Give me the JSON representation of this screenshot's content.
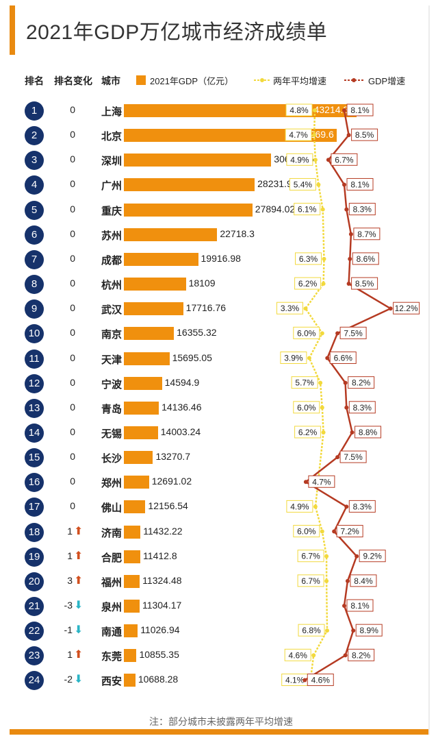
{
  "title": "2021年GDP万亿城市经济成绩单",
  "headers": {
    "rank": "排名",
    "rank_change": "排名变化",
    "city": "城市",
    "gdp": "2021年GDP（亿元）",
    "avg_growth": "两年平均增速",
    "gdp_growth": "GDP增速"
  },
  "colors": {
    "bar": "#f0900e",
    "rank_circle": "#16326b",
    "avg_line": "#f2d93c",
    "gdp_line": "#b53a22",
    "up_arrow": "#d2501f",
    "down_arrow": "#2bb5c6",
    "accent": "#e98a10"
  },
  "note": "注：部分城市未披露两年平均增速",
  "chart_data": {
    "type": "bar",
    "title": "2021年GDP万亿城市经济成绩单",
    "rows": [
      {
        "rank": "1",
        "change": "0",
        "dir": "",
        "city": "上海",
        "gdp": "43214.85",
        "avg": "4.8%",
        "growth": "8.1%"
      },
      {
        "rank": "2",
        "change": "0",
        "dir": "",
        "city": "北京",
        "gdp": "40269.6",
        "avg": "4.7%",
        "growth": "8.5%"
      },
      {
        "rank": "3",
        "change": "0",
        "dir": "",
        "city": "深圳",
        "gdp": "30664.85",
        "avg": "4.9%",
        "growth": "6.7%"
      },
      {
        "rank": "4",
        "change": "0",
        "dir": "",
        "city": "广州",
        "gdp": "28231.97",
        "avg": "5.4%",
        "growth": "8.1%"
      },
      {
        "rank": "5",
        "change": "0",
        "dir": "",
        "city": "重庆",
        "gdp": "27894.02",
        "avg": "6.1%",
        "growth": "8.3%"
      },
      {
        "rank": "6",
        "change": "0",
        "dir": "",
        "city": "苏州",
        "gdp": "22718.3",
        "avg": "",
        "growth": "8.7%"
      },
      {
        "rank": "7",
        "change": "0",
        "dir": "",
        "city": "成都",
        "gdp": "19916.98",
        "avg": "6.3%",
        "growth": "8.6%"
      },
      {
        "rank": "8",
        "change": "0",
        "dir": "",
        "city": "杭州",
        "gdp": "18109",
        "avg": "6.2%",
        "growth": "8.5%"
      },
      {
        "rank": "9",
        "change": "0",
        "dir": "",
        "city": "武汉",
        "gdp": "17716.76",
        "avg": "3.3%",
        "growth": "12.2%"
      },
      {
        "rank": "10",
        "change": "0",
        "dir": "",
        "city": "南京",
        "gdp": "16355.32",
        "avg": "6.0%",
        "growth": "7.5%"
      },
      {
        "rank": "11",
        "change": "0",
        "dir": "",
        "city": "天津",
        "gdp": "15695.05",
        "avg": "3.9%",
        "growth": "6.6%"
      },
      {
        "rank": "12",
        "change": "0",
        "dir": "",
        "city": "宁波",
        "gdp": "14594.9",
        "avg": "5.7%",
        "growth": "8.2%"
      },
      {
        "rank": "13",
        "change": "0",
        "dir": "",
        "city": "青岛",
        "gdp": "14136.46",
        "avg": "6.0%",
        "growth": "8.3%"
      },
      {
        "rank": "14",
        "change": "0",
        "dir": "",
        "city": "无锡",
        "gdp": "14003.24",
        "avg": "6.2%",
        "growth": "8.8%"
      },
      {
        "rank": "15",
        "change": "0",
        "dir": "",
        "city": "长沙",
        "gdp": "13270.7",
        "avg": "",
        "growth": "7.5%"
      },
      {
        "rank": "16",
        "change": "0",
        "dir": "",
        "city": "郑州",
        "gdp": "12691.02",
        "avg": "",
        "growth": "4.7%"
      },
      {
        "rank": "17",
        "change": "0",
        "dir": "",
        "city": "佛山",
        "gdp": "12156.54",
        "avg": "4.9%",
        "growth": "8.3%"
      },
      {
        "rank": "18",
        "change": "1",
        "dir": "up",
        "city": "济南",
        "gdp": "11432.22",
        "avg": "6.0%",
        "growth": "7.2%"
      },
      {
        "rank": "19",
        "change": "1",
        "dir": "up",
        "city": "合肥",
        "gdp": "11412.8",
        "avg": "6.7%",
        "growth": "9.2%"
      },
      {
        "rank": "20",
        "change": "3",
        "dir": "up",
        "city": "福州",
        "gdp": "11324.48",
        "avg": "6.7%",
        "growth": "8.4%"
      },
      {
        "rank": "21",
        "change": "-3",
        "dir": "down",
        "city": "泉州",
        "gdp": "11304.17",
        "avg": "",
        "growth": "8.1%"
      },
      {
        "rank": "22",
        "change": "-1",
        "dir": "down",
        "city": "南通",
        "gdp": "11026.94",
        "avg": "6.8%",
        "growth": "8.9%"
      },
      {
        "rank": "23",
        "change": "1",
        "dir": "up",
        "city": "东莞",
        "gdp": "10855.35",
        "avg": "4.6%",
        "growth": "8.2%"
      },
      {
        "rank": "24",
        "change": "-2",
        "dir": "down",
        "city": "西安",
        "gdp": "10688.28",
        "avg": "4.1%",
        "growth": "4.6%"
      }
    ]
  }
}
